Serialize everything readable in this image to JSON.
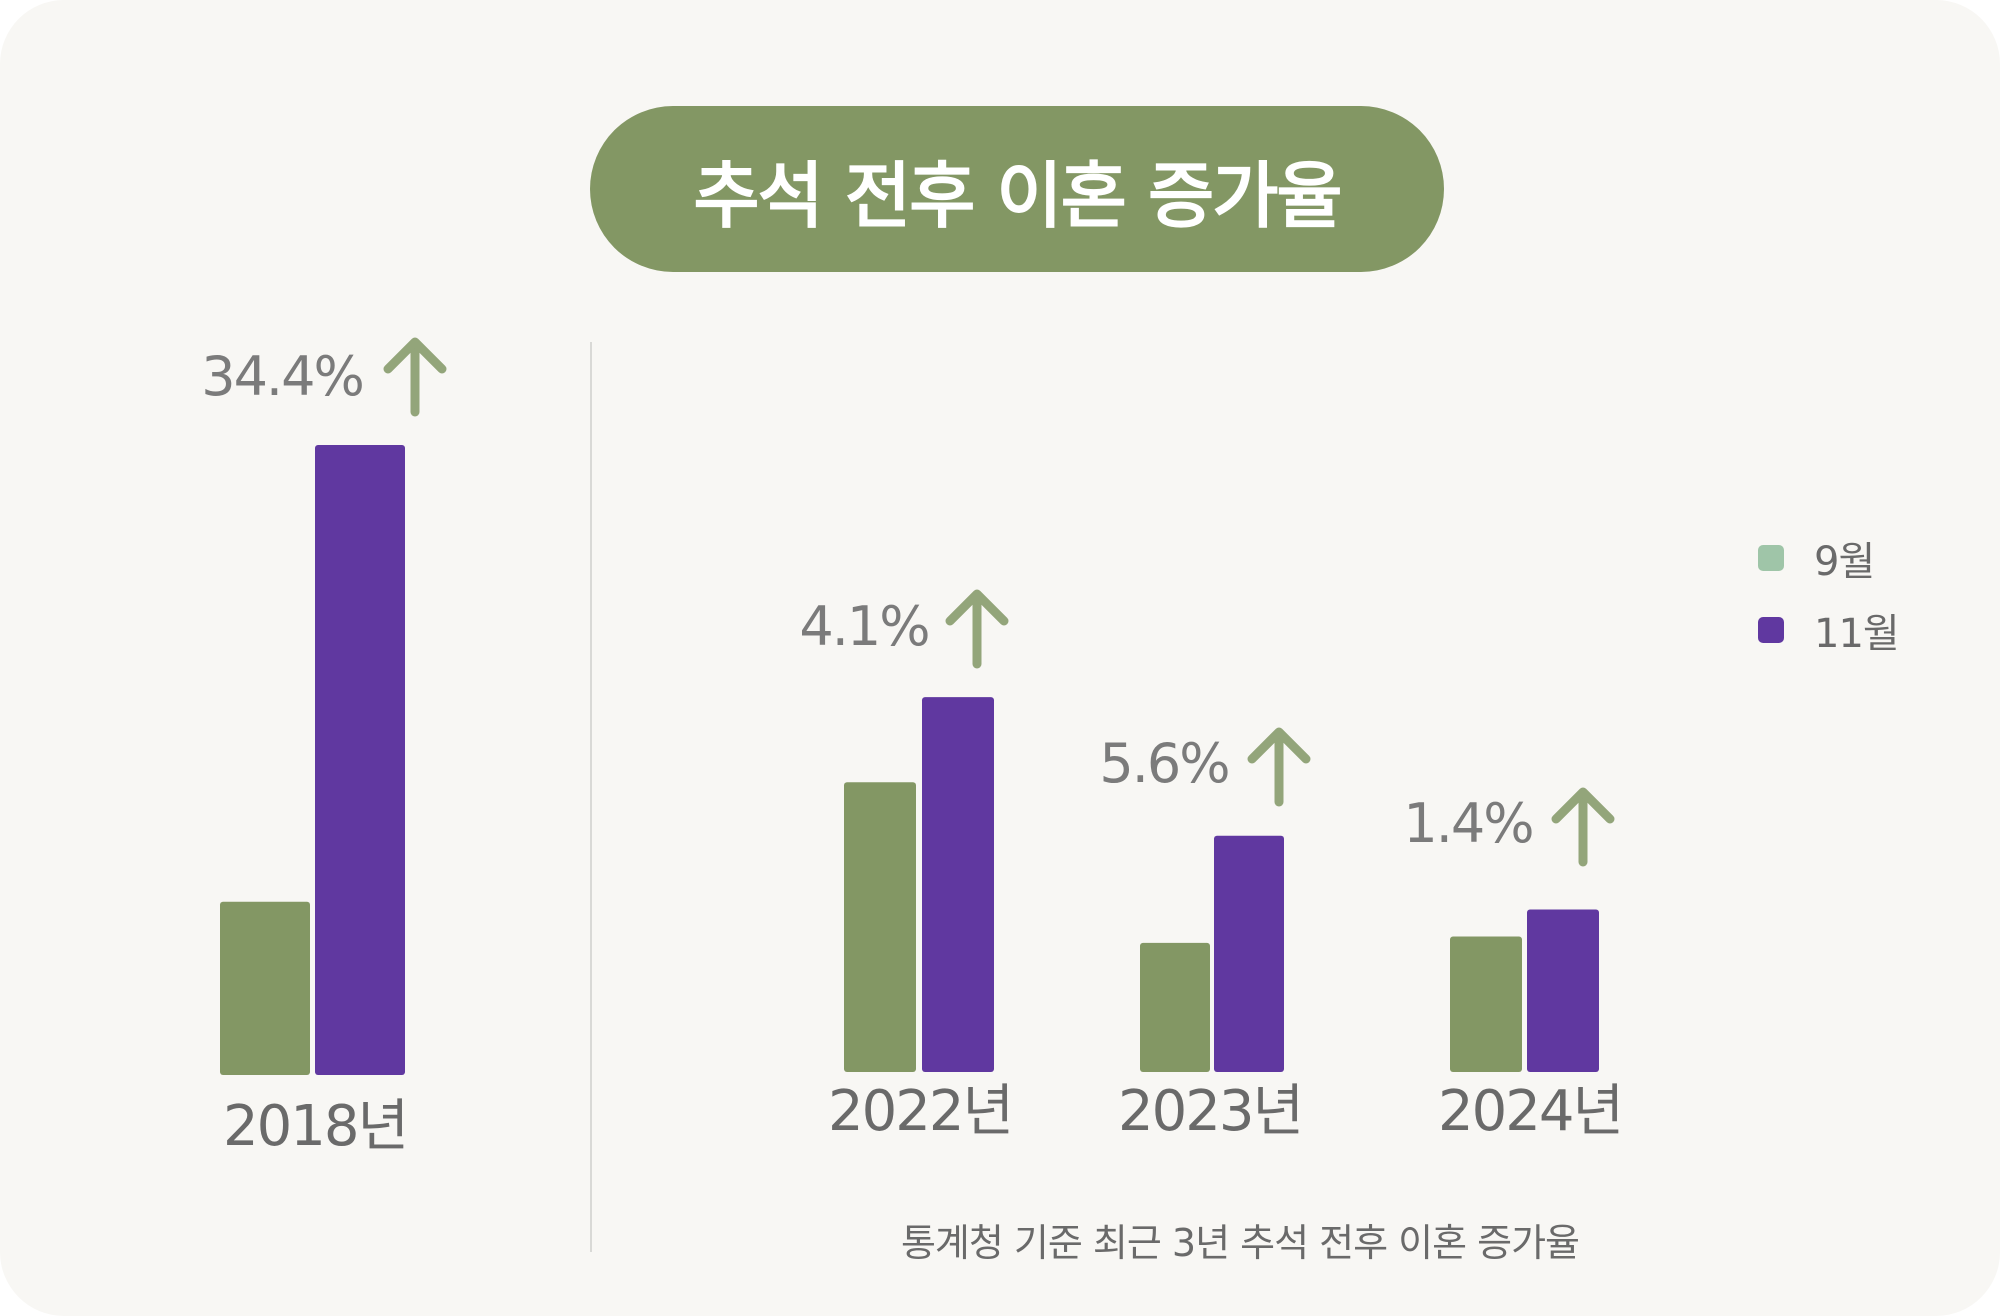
{
  "title": "추석 전후 이혼 증가율",
  "caption": "통계청 기준 최근 3년 추석 전후 이혼 증가율",
  "colors": {
    "september": "#839764",
    "november": "#6038a0",
    "arrow": "#93a57a",
    "legend_september": "#9fc5a8"
  },
  "legend": [
    {
      "label": "9월",
      "color": "#9fc5a8"
    },
    {
      "label": "11월",
      "color": "#6038a0"
    }
  ],
  "chart_data": {
    "type": "bar",
    "categories": [
      "2018년",
      "2022년",
      "2023년",
      "2024년"
    ],
    "series": [
      {
        "name": "9월",
        "values": [
          27.5,
          46,
          20.5,
          21.5
        ]
      },
      {
        "name": "11월",
        "values": [
          100,
          59.5,
          37.5,
          25.8
        ]
      }
    ],
    "annotations": [
      "34.4%",
      "4.1%",
      "5.6%",
      "1.4%"
    ],
    "annotation_icon": "arrow-up-icon",
    "title": "추석 전후 이혼 증가율",
    "xlabel": "",
    "ylabel": "",
    "ylim": [
      0,
      100
    ],
    "grid": false,
    "legend_position": "right"
  }
}
